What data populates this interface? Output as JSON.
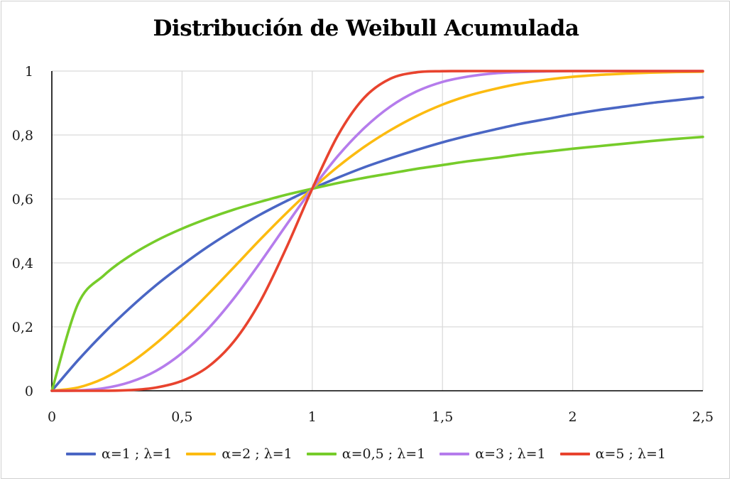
{
  "chart_data": {
    "type": "line",
    "title": "Distribución de Weibull Acumulada",
    "xlabel": "",
    "ylabel": "",
    "xlim": [
      0,
      2.5
    ],
    "ylim": [
      0,
      1
    ],
    "x_ticks": [
      "0",
      "0,5",
      "1",
      "1,5",
      "2",
      "2,5"
    ],
    "x_tick_values": [
      0,
      0.5,
      1,
      1.5,
      2,
      2.5
    ],
    "y_ticks": [
      "0",
      "0,2",
      "0,4",
      "0,6",
      "0,8",
      "1"
    ],
    "y_tick_values": [
      0,
      0.2,
      0.4,
      0.6,
      0.8,
      1
    ],
    "grid": true,
    "legend_position": "bottom",
    "x": [
      0,
      0.1,
      0.2,
      0.3,
      0.4,
      0.5,
      0.6,
      0.7,
      0.8,
      0.9,
      1.0,
      1.1,
      1.2,
      1.3,
      1.4,
      1.5,
      1.6,
      1.7,
      1.8,
      1.9,
      2.0,
      2.1,
      2.2,
      2.3,
      2.4,
      2.5
    ],
    "series": [
      {
        "name": "α=1 ; λ=1",
        "color": "#4a66c4",
        "values": [
          0,
          0.095,
          0.181,
          0.259,
          0.33,
          0.393,
          0.451,
          0.503,
          0.551,
          0.593,
          0.632,
          0.667,
          0.699,
          0.727,
          0.753,
          0.777,
          0.798,
          0.817,
          0.835,
          0.85,
          0.865,
          0.878,
          0.889,
          0.9,
          0.909,
          0.918
        ]
      },
      {
        "name": "α=2 ; λ=1",
        "color": "#fcbb10",
        "values": [
          0,
          0.01,
          0.039,
          0.086,
          0.148,
          0.221,
          0.302,
          0.387,
          0.473,
          0.555,
          0.632,
          0.702,
          0.763,
          0.815,
          0.859,
          0.895,
          0.923,
          0.944,
          0.961,
          0.973,
          0.982,
          0.988,
          0.992,
          0.995,
          0.997,
          0.998
        ]
      },
      {
        "name": "α=0,5 ; λ=1",
        "color": "#76cc2a",
        "values": [
          0,
          0.271,
          0.361,
          0.422,
          0.469,
          0.507,
          0.539,
          0.567,
          0.591,
          0.613,
          0.632,
          0.65,
          0.666,
          0.68,
          0.694,
          0.706,
          0.718,
          0.728,
          0.739,
          0.748,
          0.757,
          0.765,
          0.773,
          0.781,
          0.788,
          0.794
        ]
      },
      {
        "name": "α=3 ; λ=1",
        "color": "#b57cec",
        "values": [
          0,
          0.001,
          0.008,
          0.027,
          0.062,
          0.118,
          0.194,
          0.29,
          0.401,
          0.518,
          0.632,
          0.736,
          0.822,
          0.889,
          0.936,
          0.966,
          0.983,
          0.993,
          0.997,
          0.999,
          1.0,
          1.0,
          1.0,
          1.0,
          1.0,
          1.0
        ]
      },
      {
        "name": "α=5 ; λ=1",
        "color": "#e8432e",
        "values": [
          0,
          0.0,
          0.0,
          0.002,
          0.01,
          0.031,
          0.075,
          0.155,
          0.279,
          0.446,
          0.632,
          0.801,
          0.917,
          0.976,
          0.996,
          0.9995,
          1.0,
          1.0,
          1.0,
          1.0,
          1.0,
          1.0,
          1.0,
          1.0,
          1.0,
          1.0
        ]
      }
    ]
  },
  "style": {
    "grid_color": "#d9d9d9",
    "axis_color": "#000000"
  }
}
